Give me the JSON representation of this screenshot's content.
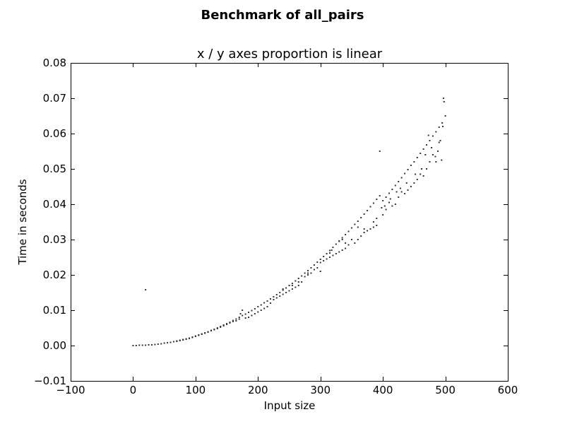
{
  "chart_data": {
    "type": "scatter",
    "suptitle": "Benchmark of all_pairs",
    "title": "x / y axes proportion is linear",
    "xlabel": "Input size",
    "ylabel": "Time in seconds",
    "xlim": [
      -100,
      600
    ],
    "ylim": [
      -0.01,
      0.08
    ],
    "x_ticks": [
      -100,
      0,
      100,
      200,
      300,
      400,
      500,
      600
    ],
    "x_tick_labels": [
      "−100",
      "0",
      "100",
      "200",
      "300",
      "400",
      "500",
      "600"
    ],
    "y_ticks": [
      -0.01,
      0.0,
      0.01,
      0.02,
      0.03,
      0.04,
      0.05,
      0.06,
      0.07,
      0.08
    ],
    "y_tick_labels": [
      "−0.01",
      "0.00",
      "0.01",
      "0.02",
      "0.03",
      "0.04",
      "0.05",
      "0.06",
      "0.07",
      "0.08"
    ],
    "grid": false,
    "marker_color": "#333333",
    "series": [
      {
        "points": [
          [
            0,
            0.0
          ],
          [
            5,
            0.0
          ],
          [
            10,
            0.0001
          ],
          [
            15,
            0.0001
          ],
          [
            20,
            0.0001
          ],
          [
            25,
            0.0002
          ],
          [
            30,
            0.0002
          ],
          [
            35,
            0.0003
          ],
          [
            40,
            0.0004
          ],
          [
            45,
            0.0005
          ],
          [
            50,
            0.0007
          ],
          [
            55,
            0.0008
          ],
          [
            60,
            0.0009
          ],
          [
            65,
            0.0011
          ],
          [
            70,
            0.0013
          ],
          [
            75,
            0.0015
          ],
          [
            80,
            0.0017
          ],
          [
            85,
            0.0019
          ],
          [
            90,
            0.0021
          ],
          [
            95,
            0.0024
          ],
          [
            100,
            0.0027
          ],
          [
            105,
            0.003
          ],
          [
            110,
            0.0033
          ],
          [
            115,
            0.0036
          ],
          [
            120,
            0.0039
          ],
          [
            125,
            0.0043
          ],
          [
            130,
            0.0046
          ],
          [
            135,
            0.005
          ],
          [
            140,
            0.0054
          ],
          [
            145,
            0.0058
          ],
          [
            150,
            0.0062
          ],
          [
            155,
            0.0066
          ],
          [
            160,
            0.0071
          ],
          [
            165,
            0.0075
          ],
          [
            170,
            0.008
          ],
          [
            175,
            0.0085
          ],
          [
            180,
            0.0089
          ],
          [
            185,
            0.0094
          ],
          [
            190,
            0.0099
          ],
          [
            195,
            0.0104
          ],
          [
            200,
            0.011
          ],
          [
            205,
            0.0115
          ],
          [
            210,
            0.0121
          ],
          [
            215,
            0.0126
          ],
          [
            220,
            0.0132
          ],
          [
            225,
            0.0138
          ],
          [
            230,
            0.0144
          ],
          [
            235,
            0.015
          ],
          [
            240,
            0.0157
          ],
          [
            245,
            0.0163
          ],
          [
            250,
            0.017
          ],
          [
            255,
            0.0176
          ],
          [
            260,
            0.0183
          ],
          [
            265,
            0.019
          ],
          [
            270,
            0.0197
          ],
          [
            275,
            0.0205
          ],
          [
            280,
            0.0212
          ],
          [
            285,
            0.022
          ],
          [
            290,
            0.0228
          ],
          [
            295,
            0.0236
          ],
          [
            300,
            0.0244
          ],
          [
            305,
            0.0252
          ],
          [
            310,
            0.026
          ],
          [
            315,
            0.0269
          ],
          [
            320,
            0.0278
          ],
          [
            325,
            0.0287
          ],
          [
            330,
            0.0296
          ],
          [
            335,
            0.0305
          ],
          [
            340,
            0.0314
          ],
          [
            345,
            0.0323
          ],
          [
            350,
            0.0333
          ],
          [
            355,
            0.0343
          ],
          [
            360,
            0.0352
          ],
          [
            365,
            0.0362
          ],
          [
            370,
            0.0372
          ],
          [
            375,
            0.0382
          ],
          [
            380,
            0.0393
          ],
          [
            385,
            0.0403
          ],
          [
            390,
            0.0414
          ],
          [
            395,
            0.0424
          ],
          [
            400,
            0.041
          ],
          [
            405,
            0.042
          ],
          [
            410,
            0.0431
          ],
          [
            415,
            0.0442
          ],
          [
            420,
            0.0453
          ],
          [
            425,
            0.0464
          ],
          [
            430,
            0.0475
          ],
          [
            435,
            0.0487
          ],
          [
            440,
            0.0498
          ],
          [
            445,
            0.051
          ],
          [
            450,
            0.052
          ],
          [
            455,
            0.0532
          ],
          [
            460,
            0.0544
          ],
          [
            465,
            0.0556
          ],
          [
            470,
            0.0568
          ],
          [
            475,
            0.058
          ],
          [
            480,
            0.0593
          ],
          [
            485,
            0.0605
          ],
          [
            490,
            0.0618
          ],
          [
            495,
            0.063
          ],
          [
            500,
            0.065
          ],
          [
            497,
            0.07
          ],
          [
            498,
            0.069
          ],
          [
            496,
            0.062
          ],
          [
            492,
            0.058
          ],
          [
            488,
            0.055
          ],
          [
            485,
            0.052
          ],
          [
            480,
            0.054
          ],
          [
            475,
            0.052
          ],
          [
            470,
            0.05
          ],
          [
            465,
            0.048
          ],
          [
            460,
            0.0485
          ],
          [
            455,
            0.047
          ],
          [
            450,
            0.046
          ],
          [
            445,
            0.045
          ],
          [
            440,
            0.044
          ],
          [
            435,
            0.043
          ],
          [
            430,
            0.0435
          ],
          [
            425,
            0.042
          ],
          [
            420,
            0.04
          ],
          [
            415,
            0.0395
          ],
          [
            410,
            0.0405
          ],
          [
            405,
            0.0385
          ],
          [
            400,
            0.037
          ],
          [
            395,
            0.055
          ],
          [
            390,
            0.034
          ],
          [
            385,
            0.0335
          ],
          [
            380,
            0.033
          ],
          [
            375,
            0.0325
          ],
          [
            370,
            0.032
          ],
          [
            365,
            0.031
          ],
          [
            360,
            0.03
          ],
          [
            355,
            0.029
          ],
          [
            350,
            0.03
          ],
          [
            345,
            0.0285
          ],
          [
            340,
            0.0275
          ],
          [
            335,
            0.027
          ],
          [
            330,
            0.0265
          ],
          [
            325,
            0.026
          ],
          [
            320,
            0.0255
          ],
          [
            315,
            0.025
          ],
          [
            310,
            0.0245
          ],
          [
            305,
            0.024
          ],
          [
            300,
            0.0235
          ],
          [
            295,
            0.022
          ],
          [
            290,
            0.0215
          ],
          [
            285,
            0.0205
          ],
          [
            280,
            0.02
          ],
          [
            275,
            0.0195
          ],
          [
            270,
            0.018
          ],
          [
            265,
            0.017
          ],
          [
            260,
            0.0165
          ],
          [
            255,
            0.016
          ],
          [
            250,
            0.0155
          ],
          [
            245,
            0.015
          ],
          [
            240,
            0.0145
          ],
          [
            235,
            0.014
          ],
          [
            230,
            0.0135
          ],
          [
            225,
            0.013
          ],
          [
            220,
            0.012
          ],
          [
            215,
            0.011
          ],
          [
            210,
            0.0105
          ],
          [
            205,
            0.01
          ],
          [
            200,
            0.0095
          ],
          [
            195,
            0.009
          ],
          [
            190,
            0.0085
          ],
          [
            185,
            0.008
          ],
          [
            180,
            0.0078
          ],
          [
            175,
            0.01
          ],
          [
            170,
            0.0075
          ],
          [
            165,
            0.007
          ],
          [
            160,
            0.0068
          ],
          [
            155,
            0.0064
          ],
          [
            150,
            0.006
          ],
          [
            145,
            0.0056
          ],
          [
            140,
            0.0052
          ],
          [
            135,
            0.0048
          ],
          [
            130,
            0.0045
          ],
          [
            125,
            0.0042
          ],
          [
            120,
            0.0038
          ],
          [
            115,
            0.0035
          ],
          [
            110,
            0.0032
          ],
          [
            105,
            0.0029
          ],
          [
            100,
            0.0026
          ],
          [
            95,
            0.0023
          ],
          [
            90,
            0.002
          ],
          [
            85,
            0.0018
          ],
          [
            80,
            0.0016
          ],
          [
            75,
            0.0014
          ],
          [
            70,
            0.0012
          ],
          [
            20,
            0.0158
          ],
          [
            172,
            0.009
          ],
          [
            240,
            0.016
          ],
          [
            255,
            0.017
          ],
          [
            265,
            0.018
          ],
          [
            280,
            0.0205
          ],
          [
            300,
            0.021
          ],
          [
            315,
            0.0262
          ],
          [
            318,
            0.027
          ],
          [
            330,
            0.0295
          ],
          [
            335,
            0.03
          ],
          [
            340,
            0.029
          ],
          [
            360,
            0.0335
          ],
          [
            370,
            0.033
          ],
          [
            385,
            0.035
          ],
          [
            390,
            0.036
          ],
          [
            398,
            0.039
          ],
          [
            403,
            0.0395
          ],
          [
            412,
            0.0415
          ],
          [
            422,
            0.0435
          ],
          [
            428,
            0.0445
          ],
          [
            438,
            0.046
          ],
          [
            452,
            0.0485
          ],
          [
            462,
            0.05
          ],
          [
            468,
            0.054
          ],
          [
            473,
            0.0595
          ],
          [
            478,
            0.056
          ],
          [
            484,
            0.0535
          ],
          [
            490,
            0.0575
          ],
          [
            494,
            0.0525
          ]
        ]
      }
    ]
  }
}
